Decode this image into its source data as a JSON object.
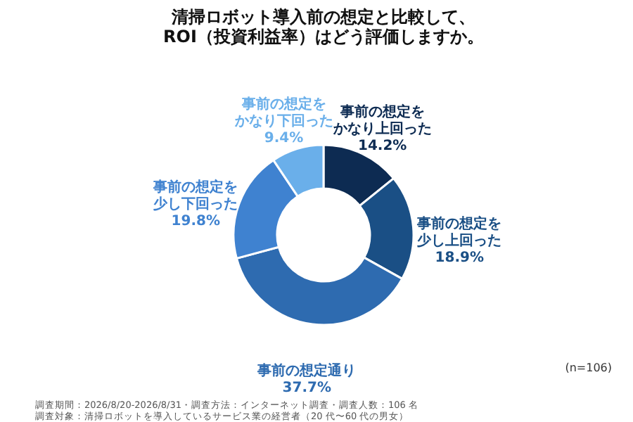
{
  "chart_data": {
    "type": "donut",
    "title": [
      "清掃ロボット導入前の想定と比較して、",
      "ROI（投資利益率）はどう評価しますか。"
    ],
    "categories": [
      "事前の想定をかなり上回った",
      "事前の想定を少し上回った",
      "事前の想定通り",
      "事前の想定を少し下回った",
      "事前の想定をかなり下回った"
    ],
    "values": [
      14.2,
      18.9,
      37.7,
      19.8,
      9.4
    ],
    "value_labels": [
      "14.2%",
      "18.9%",
      "37.7%",
      "19.8%",
      "9.4%"
    ],
    "colors": [
      "#0d2b52",
      "#1a4f85",
      "#2e6bb0",
      "#3f82d0",
      "#6aafea"
    ],
    "legend": false,
    "annotations": [
      "(n=106)",
      "調査期間：2026/8/20-2026/8/31・調査方法：インターネット調査・調査人数：106 名",
      "調査対象：清掃ロボットを導入しているサービス業の経営者（20 代〜60 代の男女）"
    ]
  }
}
